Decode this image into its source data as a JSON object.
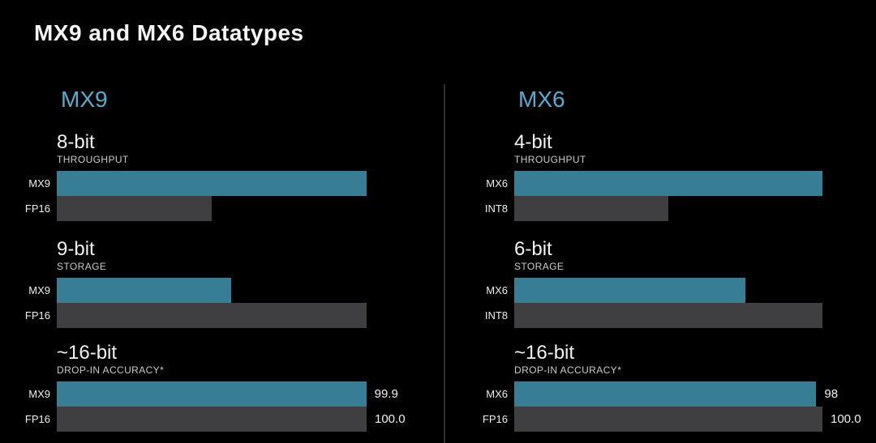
{
  "title": "MX9 and MX6 Datatypes",
  "colors": {
    "background": "#000000",
    "bar_teal": "#377e95",
    "header_teal_text": "#53aecd",
    "bar_gray": "#3f3f41",
    "divider": "#2f2f2f"
  },
  "chart_data": {
    "type": "bar",
    "orientation": "horizontal",
    "legend": "none",
    "grid": false,
    "panels": [
      {
        "header": "MX9",
        "groups": [
          {
            "title": "8-bit",
            "subtitle": "THROUGHPUT",
            "max": 2,
            "rows": [
              {
                "label": "MX9",
                "value": 2,
                "value_label": ""
              },
              {
                "label": "FP16",
                "value": 1,
                "value_label": ""
              }
            ]
          },
          {
            "title": "9-bit",
            "subtitle": "STORAGE",
            "max": 16,
            "rows": [
              {
                "label": "MX9",
                "value": 9,
                "value_label": ""
              },
              {
                "label": "FP16",
                "value": 16,
                "value_label": ""
              }
            ]
          },
          {
            "title": "~16-bit",
            "subtitle": "DROP-IN ACCURACY*",
            "max": 100,
            "rows": [
              {
                "label": "MX9",
                "value": 99.9,
                "value_label": "99.9"
              },
              {
                "label": "FP16",
                "value": 100,
                "value_label": "100.0"
              }
            ]
          }
        ]
      },
      {
        "header": "MX6",
        "groups": [
          {
            "title": "4-bit",
            "subtitle": "THROUGHPUT",
            "max": 2,
            "rows": [
              {
                "label": "MX6",
                "value": 2,
                "value_label": ""
              },
              {
                "label": "INT8",
                "value": 1,
                "value_label": ""
              }
            ]
          },
          {
            "title": "6-bit",
            "subtitle": "STORAGE",
            "max": 8,
            "rows": [
              {
                "label": "MX6",
                "value": 6,
                "value_label": ""
              },
              {
                "label": "INT8",
                "value": 8,
                "value_label": ""
              }
            ]
          },
          {
            "title": "~16-bit",
            "subtitle": "DROP-IN ACCURACY*",
            "max": 100,
            "rows": [
              {
                "label": "MX6",
                "value": 98,
                "value_label": "98"
              },
              {
                "label": "FP16",
                "value": 100,
                "value_label": "100.0"
              }
            ]
          }
        ]
      }
    ]
  }
}
